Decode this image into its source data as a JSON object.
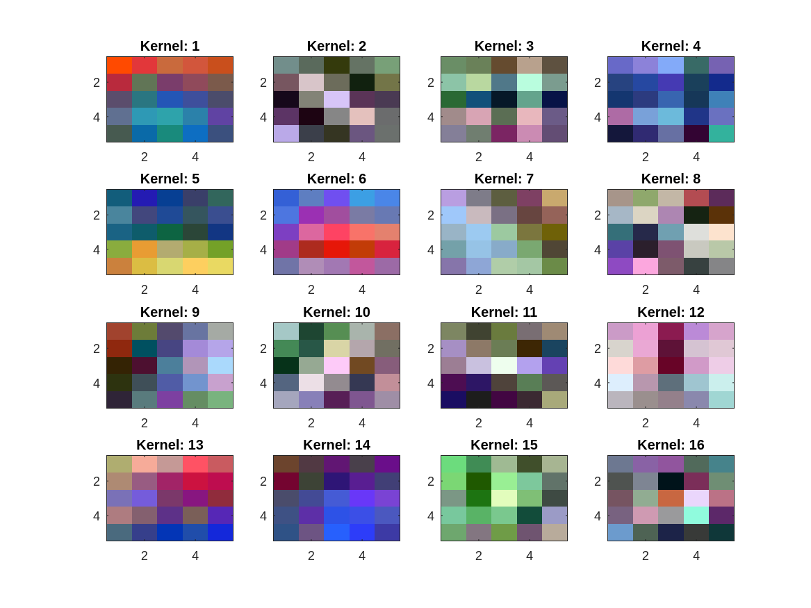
{
  "chart_data": {
    "type": "heatmap",
    "layout": "4x4 grid of 5x5 RGB images",
    "xticks": [
      2,
      4
    ],
    "yticks": [
      2,
      4
    ],
    "xlim": [
      0.5,
      5.5
    ],
    "ylim": [
      0.5,
      5.5
    ],
    "y_direction": "reversed",
    "panels": [
      {
        "title": "Kernel: 1",
        "pixels": [
          [
            "#ff4a00",
            "#e2373a",
            "#c96a3d",
            "#d2563c",
            "#c94f1c"
          ],
          [
            "#b92a3d",
            "#617556",
            "#7a3d6b",
            "#904a5b",
            "#7b5a4b"
          ],
          [
            "#5b4d6c",
            "#2a7681",
            "#2456b6",
            "#3e4f9c",
            "#4b4c6b"
          ],
          [
            "#607091",
            "#2e99b5",
            "#2ea3ab",
            "#2b81aa",
            "#6043a3"
          ],
          [
            "#475a50",
            "#0a6aa8",
            "#198a7c",
            "#0d6ec2",
            "#3b507e"
          ]
        ]
      },
      {
        "title": "Kernel: 2",
        "pixels": [
          [
            "#728e8b",
            "#5a6a5c",
            "#343a0c",
            "#657364",
            "#78a078"
          ],
          [
            "#775660",
            "#d8c5c9",
            "#6c6c5b",
            "#11210f",
            "#737548"
          ],
          [
            "#16081a",
            "#838377",
            "#d7c5f8",
            "#5a3457",
            "#4a3a53"
          ],
          [
            "#5c3465",
            "#1d0412",
            "#868686",
            "#e4c1bd",
            "#6b6c6d"
          ],
          [
            "#baa9e8",
            "#3b3f4a",
            "#353522",
            "#6b5680",
            "#6b706d"
          ]
        ]
      },
      {
        "title": "Kernel: 3",
        "pixels": [
          [
            "#6a8e66",
            "#6a8159",
            "#654b2f",
            "#b8a18d",
            "#5e5140"
          ],
          [
            "#8cc4a7",
            "#b9d8a0",
            "#507889",
            "#b9fdde",
            "#7b9c8f"
          ],
          [
            "#2a6934",
            "#12507a",
            "#061828",
            "#64a48d",
            "#071347"
          ],
          [
            "#a18b8b",
            "#d8a4b4",
            "#5b6e54",
            "#e8b7bd",
            "#6b5b87"
          ],
          [
            "#847f98",
            "#707e70",
            "#7b2563",
            "#cb8bb3",
            "#634d74"
          ]
        ]
      },
      {
        "title": "Kernel: 4",
        "pixels": [
          [
            "#6869c8",
            "#8c82d9",
            "#83aaf9",
            "#386a66",
            "#7662b2"
          ],
          [
            "#274380",
            "#2648a1",
            "#453ab3",
            "#1a405b",
            "#132a8c"
          ],
          [
            "#143670",
            "#2c3b7f",
            "#3865b0",
            "#163758",
            "#3f81b8"
          ],
          [
            "#ae6ba5",
            "#79a1d9",
            "#6cbadb",
            "#203588",
            "#6a71c0"
          ],
          [
            "#14173b",
            "#302a72",
            "#6770a3",
            "#330433",
            "#33b29d"
          ]
        ]
      },
      {
        "title": "Kernel: 5",
        "pixels": [
          [
            "#125d7b",
            "#241bb3",
            "#073f93",
            "#3a3f69",
            "#32665c"
          ],
          [
            "#4a859d",
            "#42477d",
            "#1f4a96",
            "#35555e",
            "#3a4e90"
          ],
          [
            "#1a6384",
            "#0e5c6b",
            "#0d6442",
            "#2b4638",
            "#123683"
          ],
          [
            "#8aac3e",
            "#e89c33",
            "#b3ab70",
            "#a6af47",
            "#74a128"
          ],
          [
            "#cb813d",
            "#dbbd43",
            "#d8d771",
            "#fdcf5f",
            "#e9d962"
          ]
        ]
      },
      {
        "title": "Kernel: 6",
        "pixels": [
          [
            "#3460d6",
            "#5e7ec1",
            "#704ff0",
            "#3c9fe4",
            "#4a86e8"
          ],
          [
            "#4d76e0",
            "#9b30b3",
            "#a14e9e",
            "#7a7ba4",
            "#6879b3"
          ],
          [
            "#7d3fc2",
            "#dc679f",
            "#fe4363",
            "#f87369",
            "#e4816e"
          ],
          [
            "#a13b88",
            "#ad2b1e",
            "#e61708",
            "#c23c07",
            "#d8233e"
          ],
          [
            "#7074a7",
            "#b08db7",
            "#a278b3",
            "#c2579c",
            "#9c6aa6"
          ]
        ]
      },
      {
        "title": "Kernel: 7",
        "pixels": [
          [
            "#b99ee1",
            "#7e7c89",
            "#5d5e40",
            "#7e4063",
            "#c9a96e"
          ],
          [
            "#9fc8fa",
            "#c9babe",
            "#7a7084",
            "#674540",
            "#956359"
          ],
          [
            "#99b4c6",
            "#9ccaf1",
            "#9cc9a0",
            "#7b763e",
            "#6f6108"
          ],
          [
            "#74a1a9",
            "#96c3e6",
            "#88abc9",
            "#7aa871",
            "#504635"
          ],
          [
            "#8675aa",
            "#8ea6d6",
            "#b0cda8",
            "#a4c7a4",
            "#6b8b48"
          ]
        ]
      },
      {
        "title": "Kernel: 8",
        "pixels": [
          [
            "#a7958a",
            "#8fa86c",
            "#c3b7a6",
            "#b34c52",
            "#5c2b5a"
          ],
          [
            "#a6b7c6",
            "#dcd5c3",
            "#ad86b2",
            "#152312",
            "#5b3208"
          ],
          [
            "#356f79",
            "#26294a",
            "#70a0b1",
            "#dedfdb",
            "#fde3ce"
          ],
          [
            "#5a42a6",
            "#2b1f2c",
            "#7e5272",
            "#c9c9c0",
            "#b9c8a8"
          ],
          [
            "#8e4ac2",
            "#fca7de",
            "#7d5b6a",
            "#374140",
            "#858587"
          ]
        ]
      },
      {
        "title": "Kernel: 9",
        "pixels": [
          [
            "#a1432e",
            "#6d7c39",
            "#534a6d",
            "#6874a1",
            "#a5aaa4"
          ],
          [
            "#8f280e",
            "#005060",
            "#474582",
            "#a48ad8",
            "#b5a5e9"
          ],
          [
            "#342304",
            "#4d1030",
            "#4c7f9b",
            "#b195b8",
            "#aad9fc"
          ],
          [
            "#2d330f",
            "#3f4f58",
            "#505ca6",
            "#7294ce",
            "#c8a1ce"
          ],
          [
            "#2f2437",
            "#597b7d",
            "#7d40a1",
            "#658d63",
            "#79b37e"
          ]
        ]
      },
      {
        "title": "Kernel: 10",
        "pixels": [
          [
            "#a5c8c6",
            "#1e4632",
            "#568e53",
            "#a9b4ac",
            "#8b6f64"
          ],
          [
            "#448956",
            "#285747",
            "#d9d5a6",
            "#b4a6ac",
            "#716f62"
          ],
          [
            "#063219",
            "#96a993",
            "#fdcaf8",
            "#714922",
            "#875d7b"
          ],
          [
            "#546580",
            "#ecdfe6",
            "#938b90",
            "#353853",
            "#c28f99"
          ],
          [
            "#a5a6bd",
            "#8880b8",
            "#571f56",
            "#7f5690",
            "#9f8ea6"
          ]
        ]
      },
      {
        "title": "Kernel: 11",
        "pixels": [
          [
            "#7d8662",
            "#404331",
            "#6a7b3e",
            "#796e73",
            "#9f8a74"
          ],
          [
            "#a68fc4",
            "#8d7967",
            "#6b7d55",
            "#3d2604",
            "#1a445f"
          ],
          [
            "#9c7e94",
            "#c9c1df",
            "#eefeee",
            "#b3a1ee",
            "#6441b3"
          ],
          [
            "#4d0d52",
            "#2d1665",
            "#4f433b",
            "#597e56",
            "#5c5856"
          ],
          [
            "#1a0d62",
            "#1d1d1c",
            "#420642",
            "#3b2932",
            "#a8a97a"
          ]
        ]
      },
      {
        "title": "Kernel: 12",
        "pixels": [
          [
            "#cb9bc7",
            "#eca1d4",
            "#8b1b50",
            "#bb8ad7",
            "#d6a4cc"
          ],
          [
            "#d8d4cd",
            "#eaa8d4",
            "#5e1237",
            "#d5c3d2",
            "#e0c8d5"
          ],
          [
            "#fedad9",
            "#de9ca3",
            "#680427",
            "#d19ac8",
            "#eecde7"
          ],
          [
            "#ddeefd",
            "#b897ae",
            "#5e6f7b",
            "#9fc5d0",
            "#cbefed"
          ],
          [
            "#bab5bd",
            "#9a8f8e",
            "#94808b",
            "#8a88ad",
            "#a0d6d3"
          ]
        ]
      },
      {
        "title": "Kernel: 13",
        "pixels": [
          [
            "#afad70",
            "#f6ab99",
            "#c59996",
            "#ff5264",
            "#c95b60"
          ],
          [
            "#ae8a73",
            "#985c82",
            "#a22467",
            "#cc1240",
            "#be0d4f"
          ],
          [
            "#7a71b7",
            "#755cdb",
            "#7b386a",
            "#881680",
            "#902c3c"
          ],
          [
            "#ae7c80",
            "#84606f",
            "#5d3188",
            "#7a5f58",
            "#5627b6"
          ],
          [
            "#4a6a7e",
            "#363f8b",
            "#0335b6",
            "#204daa",
            "#1428da"
          ]
        ]
      },
      {
        "title": "Kernel: 14",
        "pixels": [
          [
            "#6c442d",
            "#513943",
            "#611673",
            "#49404b",
            "#6a0e8a"
          ],
          [
            "#740430",
            "#3d4336",
            "#2e1576",
            "#591e92",
            "#413f76"
          ],
          [
            "#4a4c6b",
            "#434a95",
            "#455bd5",
            "#6937f8",
            "#7a43d4"
          ],
          [
            "#3e5184",
            "#5d2fa7",
            "#2d52e7",
            "#3b4fe7",
            "#4b58bf"
          ],
          [
            "#2f5286",
            "#6d5483",
            "#2760fd",
            "#2d3df9",
            "#3d3aa5"
          ]
        ]
      },
      {
        "title": "Kernel: 15",
        "pixels": [
          [
            "#6cdc7d",
            "#408c55",
            "#9fba93",
            "#404f2b",
            "#a7b592"
          ],
          [
            "#7bd774",
            "#1f5900",
            "#99ef94",
            "#7dc89c",
            "#617369"
          ],
          [
            "#7b9785",
            "#1d7411",
            "#e2fdbc",
            "#7fbf76",
            "#3e4a43"
          ],
          [
            "#78c89d",
            "#59b366",
            "#7ac88e",
            "#124c3a",
            "#9b9bc6"
          ],
          [
            "#6ea76e",
            "#837681",
            "#6f9c47",
            "#6f5470",
            "#b8ab9b"
          ]
        ]
      },
      {
        "title": "Kernel: 16",
        "pixels": [
          [
            "#6d7891",
            "#8962a5",
            "#91559e",
            "#516a5b",
            "#46838b"
          ],
          [
            "#4f5350",
            "#7e8593",
            "#00131a",
            "#7b2e59",
            "#6f8e74"
          ],
          [
            "#765461",
            "#91ac92",
            "#c86741",
            "#ead6fc",
            "#bb7286"
          ],
          [
            "#786280",
            "#cf9ab2",
            "#9a9a9c",
            "#90fbdd",
            "#5c2869"
          ],
          [
            "#6c9bcd",
            "#4e6354",
            "#1c2348",
            "#383a38",
            "#0f3739"
          ]
        ]
      }
    ]
  }
}
